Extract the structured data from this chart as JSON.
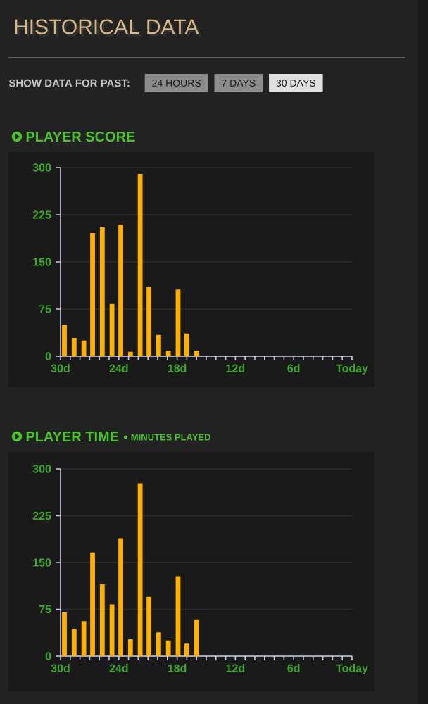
{
  "chart_data": [
    {
      "type": "other",
      "title": "HISTORICAL DATA",
      "annotations": [
        "SHOW DATA FOR PAST:",
        "24 HOURS",
        "7 DAYS",
        "30 DAYS"
      ]
    },
    {
      "type": "bar",
      "title": "PLAYER SCORE",
      "color": "#ffb000",
      "grid": "y",
      "x": [
        -29.6,
        -28.6,
        -27.6,
        -26.7,
        -25.7,
        -24.7,
        -23.8,
        -22.8,
        -21.8,
        -20.9,
        -19.9,
        -18.9,
        -17.9,
        -17.0,
        -16.0
      ],
      "values": [
        50,
        29,
        25,
        196,
        205,
        83,
        209,
        7,
        290,
        110,
        34,
        9,
        106,
        36,
        9
      ],
      "xlim": [
        -30,
        0
      ],
      "ylim": [
        0,
        300
      ],
      "yticks": [
        0,
        75,
        150,
        225,
        300
      ],
      "xticks": [
        {
          "value": -30,
          "label": "30d"
        },
        {
          "value": -29,
          "label": null
        },
        {
          "value": -28,
          "label": null
        },
        {
          "value": -27,
          "label": null
        },
        {
          "value": -26,
          "label": null
        },
        {
          "value": -25,
          "label": null
        },
        {
          "value": -24,
          "label": "24d"
        },
        {
          "value": -23,
          "label": null
        },
        {
          "value": -22,
          "label": null
        },
        {
          "value": -21,
          "label": null
        },
        {
          "value": -20,
          "label": null
        },
        {
          "value": -19,
          "label": null
        },
        {
          "value": -18,
          "label": "18d"
        },
        {
          "value": -17,
          "label": null
        },
        {
          "value": -16,
          "label": null
        },
        {
          "value": -15,
          "label": null
        },
        {
          "value": -14,
          "label": null
        },
        {
          "value": -13,
          "label": null
        },
        {
          "value": -12,
          "label": "12d"
        },
        {
          "value": -11,
          "label": null
        },
        {
          "value": -10,
          "label": null
        },
        {
          "value": -9,
          "label": null
        },
        {
          "value": -8,
          "label": null
        },
        {
          "value": -7,
          "label": null
        },
        {
          "value": -6,
          "label": "6d"
        },
        {
          "value": -5,
          "label": null
        },
        {
          "value": -4,
          "label": null
        },
        {
          "value": -3,
          "label": null
        },
        {
          "value": -2,
          "label": null
        },
        {
          "value": -1,
          "label": null
        },
        {
          "value": 0,
          "label": "Today"
        }
      ]
    },
    {
      "type": "bar",
      "title": "PLAYER TIME",
      "subtitle": "MINUTES PLAYED",
      "color": "#ffb000",
      "grid": "y",
      "x": [
        -29.6,
        -28.6,
        -27.6,
        -26.7,
        -25.7,
        -24.7,
        -23.8,
        -22.8,
        -21.8,
        -20.9,
        -19.9,
        -18.9,
        -17.9,
        -17.0,
        -16.0
      ],
      "values": [
        70,
        43,
        56,
        166,
        115,
        83,
        189,
        27,
        277,
        95,
        38,
        25,
        128,
        20,
        59
      ],
      "xlim": [
        -30,
        0
      ],
      "ylim": [
        0,
        300
      ],
      "yticks": [
        0,
        75,
        150,
        225,
        300
      ],
      "xticks": [
        {
          "value": -30,
          "label": "30d"
        },
        {
          "value": -29,
          "label": null
        },
        {
          "value": -28,
          "label": null
        },
        {
          "value": -27,
          "label": null
        },
        {
          "value": -26,
          "label": null
        },
        {
          "value": -25,
          "label": null
        },
        {
          "value": -24,
          "label": "24d"
        },
        {
          "value": -23,
          "label": null
        },
        {
          "value": -22,
          "label": null
        },
        {
          "value": -21,
          "label": null
        },
        {
          "value": -20,
          "label": null
        },
        {
          "value": -19,
          "label": null
        },
        {
          "value": -18,
          "label": "18d"
        },
        {
          "value": -17,
          "label": null
        },
        {
          "value": -16,
          "label": null
        },
        {
          "value": -15,
          "label": null
        },
        {
          "value": -14,
          "label": null
        },
        {
          "value": -13,
          "label": null
        },
        {
          "value": -12,
          "label": "12d"
        },
        {
          "value": -11,
          "label": null
        },
        {
          "value": -10,
          "label": null
        },
        {
          "value": -9,
          "label": null
        },
        {
          "value": -8,
          "label": null
        },
        {
          "value": -7,
          "label": null
        },
        {
          "value": -6,
          "label": "6d"
        },
        {
          "value": -5,
          "label": null
        },
        {
          "value": -4,
          "label": null
        },
        {
          "value": -3,
          "label": null
        },
        {
          "value": -2,
          "label": null
        },
        {
          "value": -1,
          "label": null
        },
        {
          "value": 0,
          "label": "Today"
        }
      ]
    }
  ]
}
